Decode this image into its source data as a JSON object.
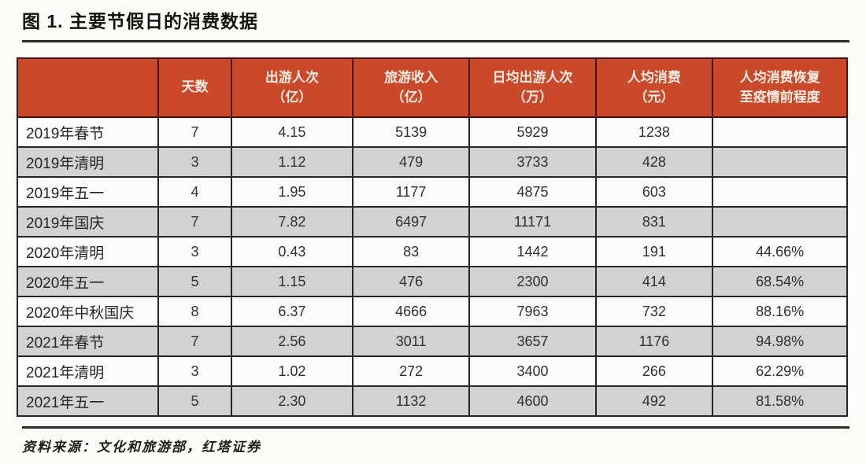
{
  "figure": {
    "title": "图 1. 主要节假日的消费数据",
    "source_note": "资料来源：文化和旅游部，红塔证券"
  },
  "colors": {
    "header_bg": "#c9492a",
    "header_text": "#fbeee4",
    "row_odd_bg": "#fbfbfb",
    "row_even_bg": "#d2d2d2",
    "border": "#262626"
  },
  "chart_data": {
    "type": "table",
    "title": "主要节假日的消费数据",
    "columns": [
      {
        "lines": [
          ""
        ],
        "width": "17%"
      },
      {
        "lines": [
          "天数"
        ],
        "width": "8.8%"
      },
      {
        "lines": [
          "出游人次",
          "（亿）"
        ],
        "width": "14.6%"
      },
      {
        "lines": [
          "旅游收入",
          "（亿）"
        ],
        "width": "14.1%"
      },
      {
        "lines": [
          "日均出游人次",
          "（万）"
        ],
        "width": "15.2%"
      },
      {
        "lines": [
          "人均消费",
          "（元）"
        ],
        "width": "14.1%"
      },
      {
        "lines": [
          "人均消费恢复",
          "至疫情前程度"
        ],
        "width": "16.2%"
      }
    ],
    "rows": [
      [
        "2019年春节",
        "7",
        "4.15",
        "5139",
        "5929",
        "1238",
        ""
      ],
      [
        "2019年清明",
        "3",
        "1.12",
        "479",
        "3733",
        "428",
        ""
      ],
      [
        "2019年五一",
        "4",
        "1.95",
        "1177",
        "4875",
        "603",
        ""
      ],
      [
        "2019年国庆",
        "7",
        "7.82",
        "6497",
        "11171",
        "831",
        ""
      ],
      [
        "2020年清明",
        "3",
        "0.43",
        "83",
        "1442",
        "191",
        "44.66%"
      ],
      [
        "2020年五一",
        "5",
        "1.15",
        "476",
        "2300",
        "414",
        "68.54%"
      ],
      [
        "2020年中秋国庆",
        "8",
        "6.37",
        "4666",
        "7963",
        "732",
        "88.16%"
      ],
      [
        "2021年春节",
        "7",
        "2.56",
        "3011",
        "3657",
        "1176",
        "94.98%"
      ],
      [
        "2021年清明",
        "3",
        "1.02",
        "272",
        "3400",
        "266",
        "62.29%"
      ],
      [
        "2021年五一",
        "5",
        "2.30",
        "1132",
        "4600",
        "492",
        "81.58%"
      ]
    ]
  }
}
